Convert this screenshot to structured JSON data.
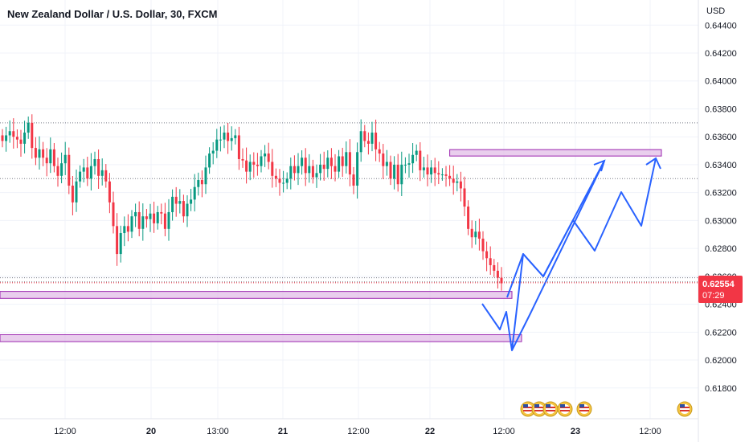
{
  "chart_data": {
    "type": "candlestick",
    "title": "New Zealand Dollar / U.S. Dollar, 30, FXCM",
    "currency_label": "USD",
    "y_ticks": [
      "0.64400",
      "0.64200",
      "0.64000",
      "0.63800",
      "0.63600",
      "0.63400",
      "0.63200",
      "0.63000",
      "0.62800",
      "0.62600",
      "0.62400",
      "0.62200",
      "0.62000",
      "0.61800"
    ],
    "y_range": [
      0.6158,
      0.6458
    ],
    "x_ticks": [
      {
        "label": "12:00",
        "bold": false
      },
      {
        "label": "20",
        "bold": true
      },
      {
        "label": "13:00",
        "bold": false
      },
      {
        "label": "21",
        "bold": true
      },
      {
        "label": "12:00",
        "bold": false
      },
      {
        "label": "22",
        "bold": true
      },
      {
        "label": "12:00",
        "bold": false
      },
      {
        "label": "23",
        "bold": true
      },
      {
        "label": "12:00",
        "bold": false
      }
    ],
    "current_price": {
      "value": "0.62554",
      "countdown": "07:29",
      "price": 0.62554
    },
    "reference_lines": [
      0.637,
      0.633,
      0.6256,
      0.6259
    ],
    "zones": [
      {
        "from": 0.63462,
        "to": 0.63508,
        "start_bar": 121,
        "end": "projection"
      },
      {
        "from": 0.62442,
        "to": 0.62492,
        "start_bar": 0,
        "end": "projection"
      },
      {
        "from": 0.62132,
        "to": 0.62182,
        "start_bar": 0,
        "end": "projection"
      }
    ],
    "projection_paths": [
      [
        [
          0.6244,
          0
        ],
        [
          0.6227,
          3
        ],
        [
          0.6238,
          5
        ],
        [
          0.621,
          9
        ],
        [
          0.6293,
          25
        ],
        [
          0.6281,
          34
        ],
        [
          0.6302,
          42
        ],
        [
          0.6279,
          52
        ],
        [
          0.6323,
          65
        ],
        [
          0.6298,
          80
        ],
        [
          0.6348,
          88
        ],
        [
          0.634,
          95
        ]
      ],
      [
        [
          0.6246,
          7
        ],
        [
          0.628,
          18
        ],
        [
          0.6265,
          34
        ],
        [
          0.6338,
          58
        ],
        [
          0.6347,
          50
        ],
        [
          0.6332,
          58
        ]
      ],
      [
        [
          0.621,
          9
        ],
        [
          0.624,
          17
        ],
        [
          0.6344,
          60
        ],
        [
          0.6336,
          65
        ],
        [
          0.6348,
          70
        ]
      ]
    ],
    "series": [
      {
        "name": "",
        "values": [
          0.6357,
          0.6361,
          0.6364,
          0.636,
          0.6358,
          0.6355,
          0.6363,
          0.637,
          0.6352,
          0.6345,
          0.6351,
          0.6345,
          0.6341,
          0.6351,
          0.6339,
          0.6332,
          0.6341,
          0.6347,
          0.6325,
          0.6313,
          0.6328,
          0.6335,
          0.6338,
          0.633,
          0.6339,
          0.6344,
          0.6332,
          0.6336,
          0.6328,
          0.6313,
          0.6296,
          0.6276,
          0.6291,
          0.6296,
          0.6292,
          0.6303,
          0.6306,
          0.6294,
          0.6303,
          0.6301,
          0.6305,
          0.6298,
          0.6306,
          0.6305,
          0.6294,
          0.6306,
          0.6317,
          0.6312,
          0.6314,
          0.6303,
          0.6312,
          0.6315,
          0.6324,
          0.6329,
          0.6326,
          0.6338,
          0.6348,
          0.635,
          0.6358,
          0.6358,
          0.6363,
          0.6357,
          0.6359,
          0.6361,
          0.6344,
          0.6343,
          0.6335,
          0.6342,
          0.634,
          0.6339,
          0.6346,
          0.6348,
          0.6342,
          0.6332,
          0.633,
          0.6327,
          0.6327,
          0.633,
          0.6339,
          0.6334,
          0.6339,
          0.6345,
          0.6334,
          0.6339,
          0.6331,
          0.6334,
          0.634,
          0.6337,
          0.6345,
          0.6339,
          0.6335,
          0.6346,
          0.6339,
          0.6349,
          0.6333,
          0.6325,
          0.6349,
          0.6364,
          0.6357,
          0.6355,
          0.6363,
          0.6351,
          0.6348,
          0.6339,
          0.6342,
          0.633,
          0.634,
          0.6326,
          0.634,
          0.634,
          0.6341,
          0.6347,
          0.635,
          0.6336,
          0.6338,
          0.6333,
          0.6338,
          0.6334,
          0.6333,
          0.6333,
          0.6332,
          0.633,
          0.6327,
          0.6328,
          0.6323,
          0.631,
          0.6294,
          0.6288,
          0.6292,
          0.6287,
          0.6278,
          0.6273,
          0.6268,
          0.6264,
          0.6259,
          0.6255
        ]
      }
    ]
  }
}
